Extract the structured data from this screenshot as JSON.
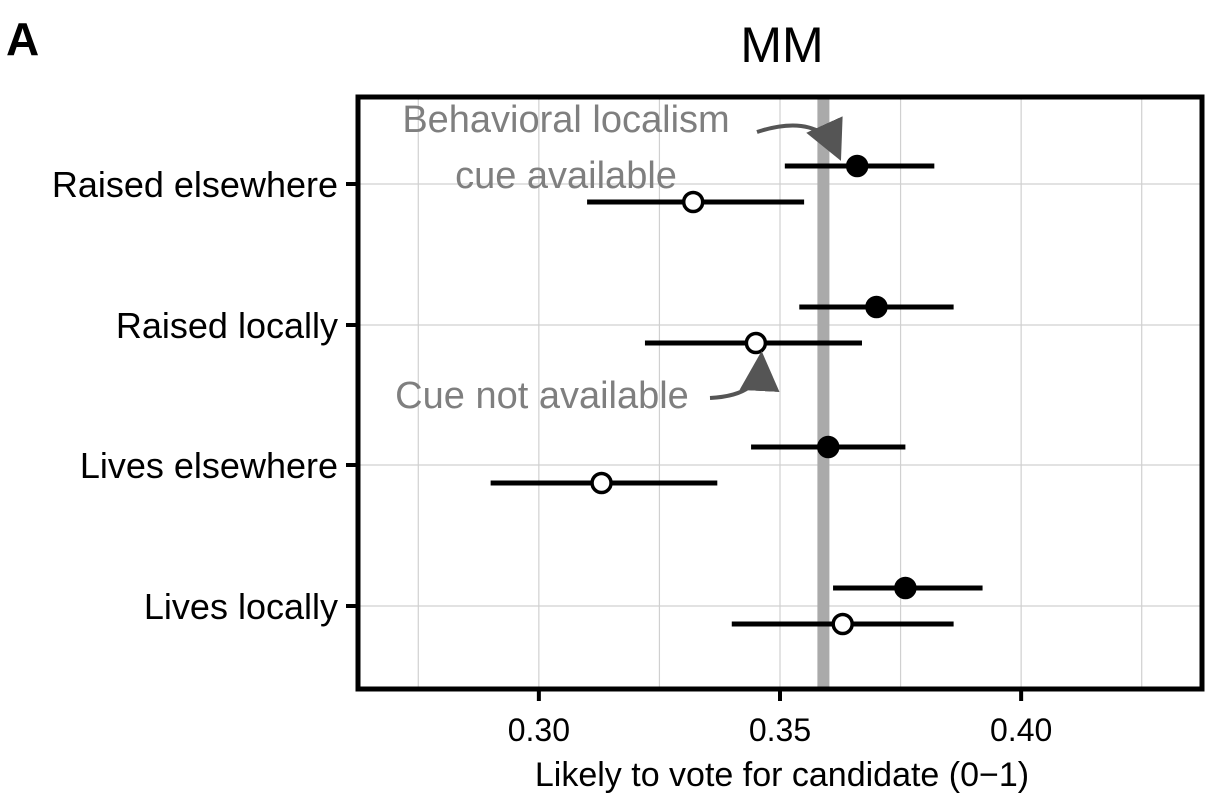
{
  "panel_label": "A",
  "chart_data": {
    "type": "scatter",
    "title": "MM",
    "xlabel": "Likely to vote for candidate (0−1)",
    "ylabel": "",
    "xlim": [
      0.2625,
      0.4375
    ],
    "xticks": [
      0.3,
      0.35,
      0.4
    ],
    "xtick_labels": [
      "0.30",
      "0.35",
      "0.40"
    ],
    "grid": true,
    "categories": [
      "Raised elsewhere",
      "Raised locally",
      "Lives elsewhere",
      "Lives locally"
    ],
    "reference_line": {
      "x": 0.359,
      "color": "#aaaaaa"
    },
    "series": [
      {
        "marker": "filled",
        "color": "#000000",
        "points": [
          {
            "category": "Raised elsewhere",
            "x": 0.366,
            "low": 0.351,
            "high": 0.382
          },
          {
            "category": "Raised locally",
            "x": 0.37,
            "low": 0.354,
            "high": 0.386
          },
          {
            "category": "Lives elsewhere",
            "x": 0.36,
            "low": 0.344,
            "high": 0.376
          },
          {
            "category": "Lives locally",
            "x": 0.376,
            "low": 0.361,
            "high": 0.392
          }
        ]
      },
      {
        "marker": "hollow",
        "color": "#000000",
        "points": [
          {
            "category": "Raised elsewhere",
            "x": 0.332,
            "low": 0.31,
            "high": 0.355
          },
          {
            "category": "Raised locally",
            "x": 0.345,
            "low": 0.322,
            "high": 0.367
          },
          {
            "category": "Lives elsewhere",
            "x": 0.313,
            "low": 0.29,
            "high": 0.337
          },
          {
            "category": "Lives locally",
            "x": 0.363,
            "low": 0.34,
            "high": 0.386
          }
        ]
      }
    ],
    "annotations": [
      {
        "lines": [
          "Behavioral localism",
          "cue available"
        ],
        "color": "#7f7f7f"
      },
      {
        "lines": [
          "Cue not available"
        ],
        "color": "#7f7f7f"
      }
    ]
  }
}
